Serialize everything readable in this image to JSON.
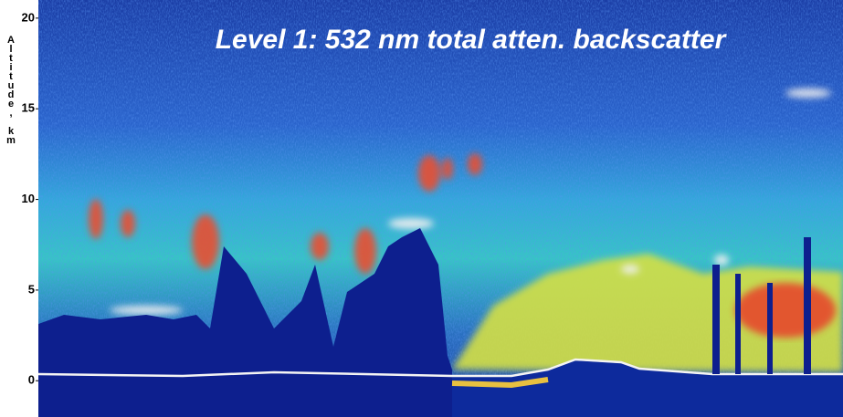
{
  "chart_data": {
    "type": "heatmap",
    "title": "Level 1: 532 nm total atten. backscatter",
    "y_label": "Altitude, km",
    "ylim": [
      -2,
      21
    ],
    "yticks": [
      0,
      5,
      10,
      15,
      20
    ]
  }
}
